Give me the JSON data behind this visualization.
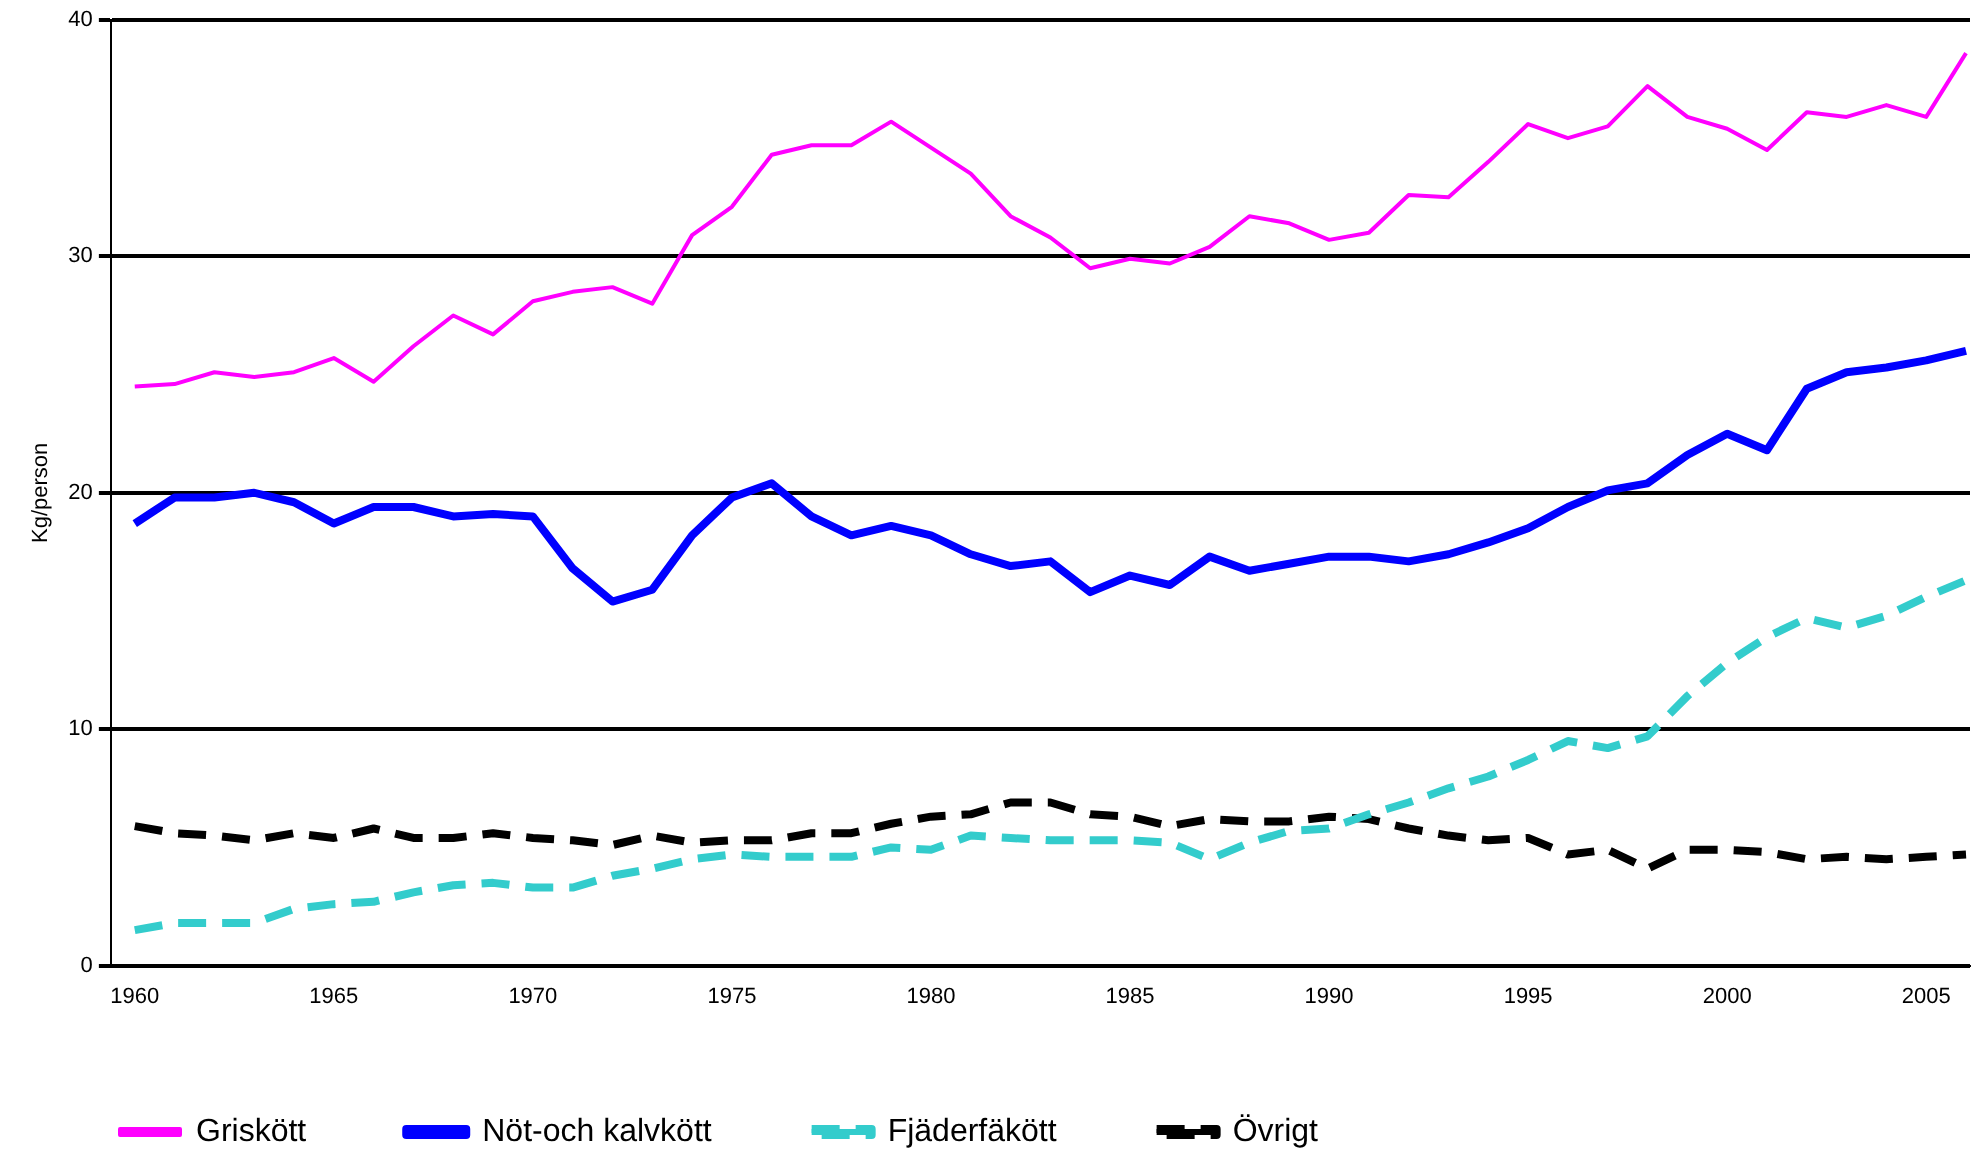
{
  "chart_data": {
    "type": "line",
    "ylabel": "Kg/person",
    "xlim": [
      1959.4,
      2006.1
    ],
    "xticks": [
      1960,
      1965,
      1970,
      1975,
      1980,
      1985,
      1990,
      1995,
      2000,
      2005
    ],
    "ylim": [
      0,
      40
    ],
    "yticks": [
      0,
      10,
      20,
      30,
      40
    ],
    "grid": "y",
    "legend": "bottom",
    "marker": "none",
    "x": [
      1960,
      1961,
      1962,
      1963,
      1964,
      1965,
      1966,
      1967,
      1968,
      1969,
      1970,
      1971,
      1972,
      1973,
      1974,
      1975,
      1976,
      1977,
      1978,
      1979,
      1980,
      1981,
      1982,
      1983,
      1984,
      1985,
      1986,
      1987,
      1988,
      1989,
      1990,
      1991,
      1992,
      1993,
      1994,
      1995,
      1996,
      1997,
      1998,
      1999,
      2000,
      2001,
      2002,
      2003,
      2004,
      2005,
      2006
    ],
    "series": [
      {
        "name": "Griskött",
        "color": "#ff00ff",
        "line_style": "solid",
        "values": [
          24.5,
          24.6,
          25.1,
          24.9,
          25.1,
          25.7,
          24.7,
          26.2,
          27.5,
          26.7,
          28.1,
          28.5,
          28.7,
          28.0,
          30.9,
          32.1,
          34.3,
          34.7,
          34.7,
          35.7,
          34.6,
          33.5,
          31.7,
          30.8,
          29.5,
          29.9,
          29.7,
          30.4,
          31.7,
          31.4,
          30.7,
          31.0,
          32.6,
          32.5,
          34.0,
          35.6,
          35.0,
          35.5,
          37.2,
          35.9,
          35.4,
          34.5,
          36.1,
          35.9,
          36.4,
          35.9,
          38.6
        ]
      },
      {
        "name": "Nöt-och kalvkött",
        "color": "#0000ff",
        "line_style": "solid",
        "values": [
          18.7,
          19.8,
          19.8,
          20.0,
          19.6,
          18.7,
          19.4,
          19.4,
          19.0,
          19.1,
          19.0,
          16.8,
          15.4,
          15.9,
          18.2,
          19.8,
          20.4,
          19.0,
          18.2,
          18.6,
          18.2,
          17.4,
          16.9,
          17.1,
          15.8,
          16.5,
          16.1,
          17.3,
          16.7,
          17.0,
          17.3,
          17.3,
          17.1,
          17.4,
          17.9,
          18.5,
          19.4,
          20.1,
          20.4,
          21.6,
          22.5,
          21.8,
          24.4,
          25.1,
          25.3,
          25.6,
          26.0
        ]
      },
      {
        "name": "Fjäderfäkött",
        "color": "#33cccc",
        "line_style": "dashed",
        "values": [
          1.5,
          1.8,
          1.8,
          1.8,
          2.4,
          2.6,
          2.7,
          3.1,
          3.4,
          3.5,
          3.3,
          3.3,
          3.8,
          4.1,
          4.5,
          4.7,
          4.6,
          4.6,
          4.6,
          5.0,
          4.9,
          5.5,
          5.4,
          5.3,
          5.3,
          5.3,
          5.2,
          4.5,
          5.2,
          5.7,
          5.8,
          6.4,
          6.9,
          7.5,
          8.0,
          8.7,
          9.5,
          9.2,
          9.7,
          11.4,
          12.8,
          13.9,
          14.7,
          14.3,
          14.8,
          15.6,
          16.3
        ]
      },
      {
        "name": "Övrigt",
        "color": "#000000",
        "line_style": "dashed",
        "values": [
          5.9,
          5.6,
          5.5,
          5.3,
          5.6,
          5.4,
          5.8,
          5.4,
          5.4,
          5.6,
          5.4,
          5.3,
          5.1,
          5.5,
          5.2,
          5.3,
          5.3,
          5.6,
          5.6,
          6.0,
          6.3,
          6.4,
          6.9,
          6.9,
          6.4,
          6.3,
          5.9,
          6.2,
          6.1,
          6.1,
          6.3,
          6.2,
          5.8,
          5.5,
          5.3,
          5.4,
          4.7,
          4.9,
          4.1,
          4.9,
          4.9,
          4.8,
          4.5,
          4.6,
          4.5,
          4.6,
          4.7
        ]
      }
    ]
  }
}
